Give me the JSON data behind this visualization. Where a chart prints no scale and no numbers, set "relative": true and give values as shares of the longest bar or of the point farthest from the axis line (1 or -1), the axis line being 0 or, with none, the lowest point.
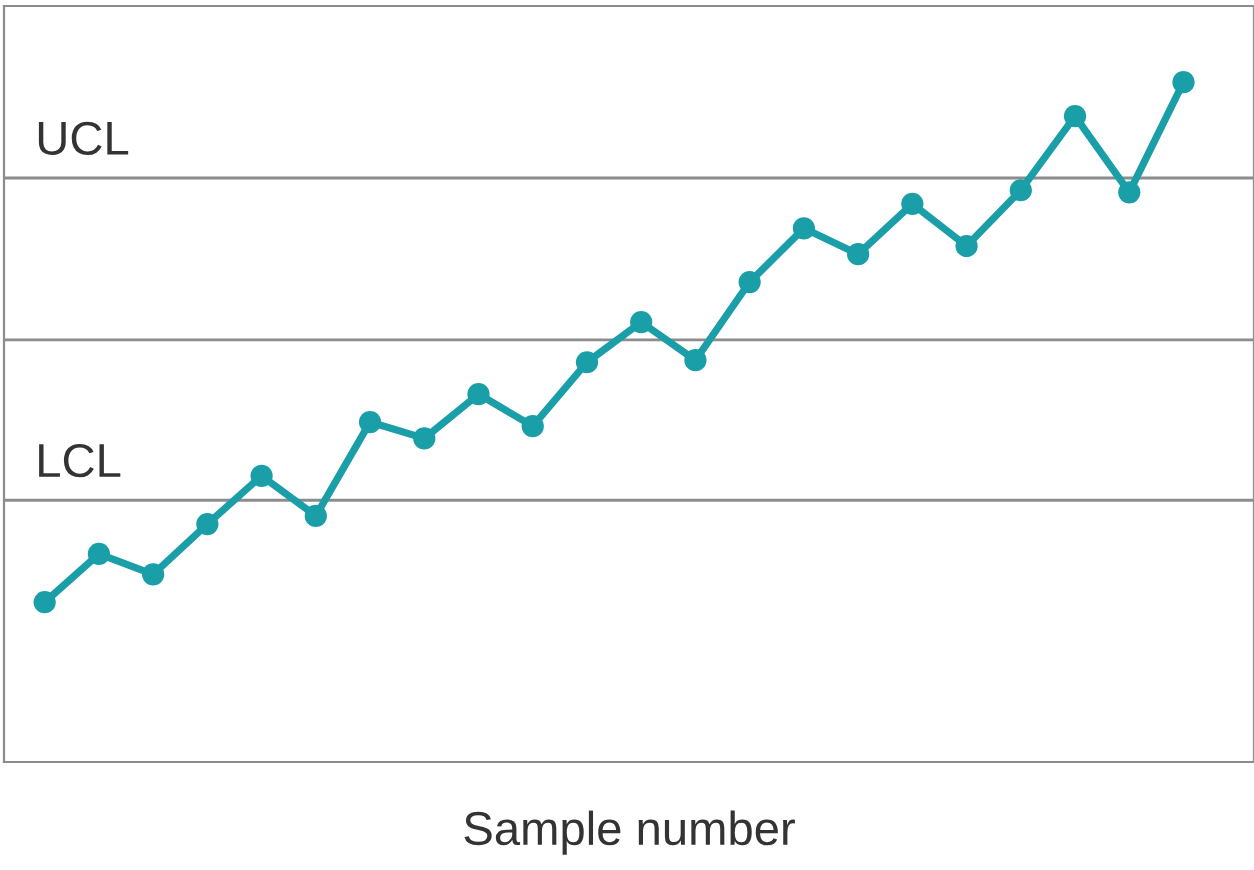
{
  "chart_data": {
    "type": "line",
    "xlabel": "Sample number",
    "relative": true,
    "marker": "circle",
    "line_style": "solid",
    "grid": false,
    "legend": false,
    "categories": [
      null,
      null,
      null,
      null,
      null,
      null,
      null,
      null,
      null,
      null,
      null,
      null,
      null,
      null,
      null,
      null,
      null,
      null,
      null,
      null,
      null,
      null
    ],
    "series": [
      {
        "color": "#1a9ea8",
        "values": [
          0.235,
          0.306,
          0.276,
          0.35,
          0.421,
          0.362,
          0.5,
          0.476,
          0.541,
          0.494,
          0.588,
          0.647,
          0.591,
          0.706,
          0.785,
          0.747,
          0.821,
          0.759,
          0.841,
          0.95,
          0.838,
          1.0
        ]
      }
    ],
    "ref_lines": [
      {
        "axis": "y",
        "value": 0.859,
        "label": "UCL",
        "color": "#8c8c8c"
      },
      {
        "axis": "y",
        "value": 0.621,
        "label": null,
        "color": "#8c8c8c"
      },
      {
        "axis": "y",
        "value": 0.385,
        "label": "LCL",
        "color": "#8c8c8c"
      }
    ]
  }
}
